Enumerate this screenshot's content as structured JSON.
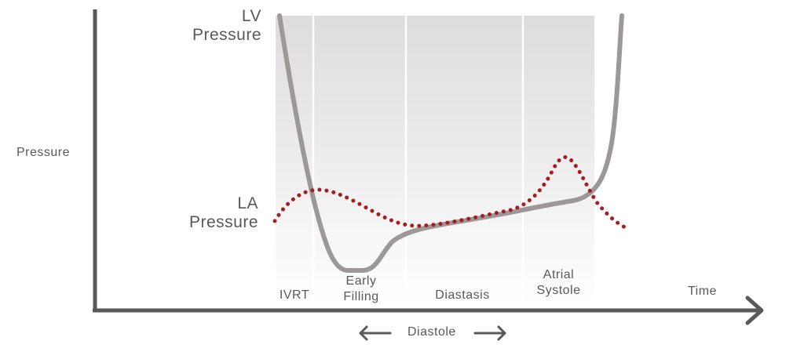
{
  "colors": {
    "axis": "#58595b",
    "lv_curve": "#9d9898",
    "la_curve": "#a41d21",
    "band_top": "#dddbdd",
    "band_bottom": "#ffffff",
    "divider": "#ffffff",
    "text": "#58595b"
  },
  "labels": {
    "y_axis": "Pressure",
    "x_axis": "Time",
    "lv_line1": "LV",
    "lv_line2": "Pressure",
    "la_line1": "LA",
    "la_line2": "Pressure",
    "diastole": "Diastole"
  },
  "phases": [
    {
      "line1": "IVRT",
      "line2": ""
    },
    {
      "line1": "Early",
      "line2": "Filling"
    },
    {
      "line1": "Diastasis",
      "line2": ""
    },
    {
      "line1": "Atrial",
      "line2": "Systole"
    }
  ],
  "icons": {
    "diastole_left": "arrow-left-icon",
    "diastole_right": "arrow-right-icon"
  }
}
